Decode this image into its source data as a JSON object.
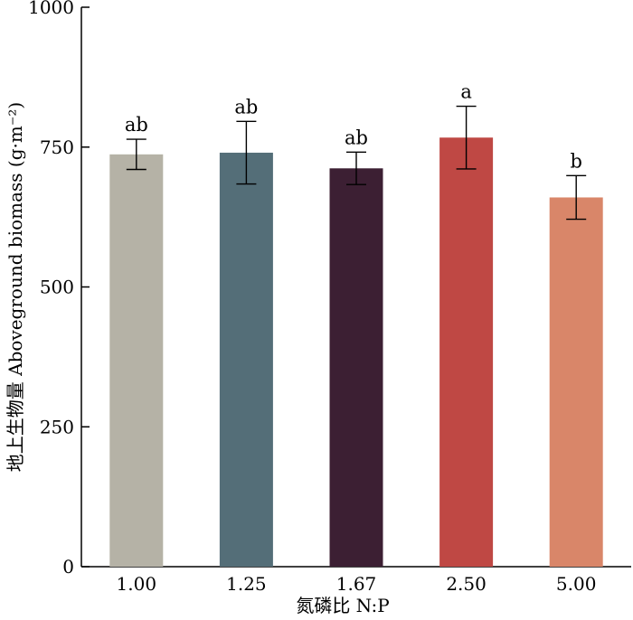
{
  "chart_data": {
    "type": "bar",
    "categories": [
      "1.00",
      "1.25",
      "1.67",
      "2.50",
      "5.00"
    ],
    "values": [
      737,
      740,
      712,
      767,
      660
    ],
    "errors": [
      27,
      56,
      29,
      56,
      39
    ],
    "significance": [
      "ab",
      "ab",
      "ab",
      "a",
      "b"
    ],
    "bar_colors": [
      "#b5b2a6",
      "#546e78",
      "#3c1f33",
      "#bf4844",
      "#d98669"
    ],
    "xlabel": "氮磷比 N:P",
    "ylabel": "地上生物量 Aboveground biomass (g·m⁻²)",
    "ylim": [
      0,
      1000
    ],
    "yticks": [
      "0",
      "250",
      "500",
      "750",
      "1000"
    ],
    "grid": false,
    "legend": false
  }
}
